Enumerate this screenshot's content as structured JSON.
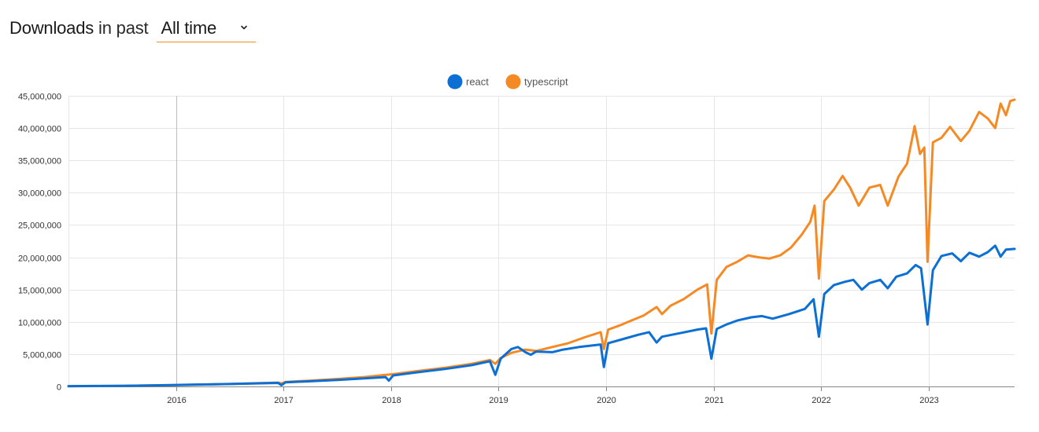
{
  "header": {
    "title": "Downloads",
    "subtitle": "in past",
    "range_value": "All time",
    "range_options": [
      "All time"
    ]
  },
  "chart_data": {
    "type": "line",
    "title": "",
    "xlabel": "",
    "ylabel": "",
    "x_range": [
      2015.0,
      2023.8
    ],
    "ylim": [
      0,
      45000000
    ],
    "y_ticks": [
      0,
      5000000,
      10000000,
      15000000,
      20000000,
      25000000,
      30000000,
      35000000,
      40000000,
      45000000
    ],
    "y_tick_labels": [
      "0",
      "5,000,000",
      "10,000,000",
      "15,000,000",
      "20,000,000",
      "25,000,000",
      "30,000,000",
      "35,000,000",
      "40,000,000",
      "45,000,000"
    ],
    "x_ticks": [
      2016,
      2017,
      2018,
      2019,
      2020,
      2021,
      2022,
      2023
    ],
    "x_tick_labels": [
      "2016",
      "2017",
      "2018",
      "2019",
      "2020",
      "2021",
      "2022",
      "2023"
    ],
    "grid": true,
    "legend_position": "top-center",
    "series": [
      {
        "name": "react",
        "color": "#0b6fd4",
        "points": [
          [
            2015.0,
            50000
          ],
          [
            2015.25,
            70000
          ],
          [
            2015.5,
            100000
          ],
          [
            2015.75,
            150000
          ],
          [
            2016.0,
            230000
          ],
          [
            2016.25,
            300000
          ],
          [
            2016.5,
            380000
          ],
          [
            2016.75,
            480000
          ],
          [
            2016.95,
            550000
          ],
          [
            2016.98,
            200000
          ],
          [
            2017.02,
            650000
          ],
          [
            2017.25,
            800000
          ],
          [
            2017.5,
            1000000
          ],
          [
            2017.75,
            1250000
          ],
          [
            2017.95,
            1450000
          ],
          [
            2017.98,
            900000
          ],
          [
            2018.02,
            1700000
          ],
          [
            2018.25,
            2200000
          ],
          [
            2018.5,
            2700000
          ],
          [
            2018.75,
            3300000
          ],
          [
            2018.92,
            3900000
          ],
          [
            2018.97,
            1800000
          ],
          [
            2019.02,
            4300000
          ],
          [
            2019.12,
            5800000
          ],
          [
            2019.18,
            6100000
          ],
          [
            2019.25,
            5300000
          ],
          [
            2019.3,
            4900000
          ],
          [
            2019.35,
            5400000
          ],
          [
            2019.5,
            5300000
          ],
          [
            2019.6,
            5700000
          ],
          [
            2019.75,
            6100000
          ],
          [
            2019.95,
            6500000
          ],
          [
            2019.98,
            3000000
          ],
          [
            2020.02,
            6700000
          ],
          [
            2020.15,
            7300000
          ],
          [
            2020.3,
            8000000
          ],
          [
            2020.4,
            8400000
          ],
          [
            2020.47,
            6800000
          ],
          [
            2020.52,
            7700000
          ],
          [
            2020.7,
            8300000
          ],
          [
            2020.85,
            8800000
          ],
          [
            2020.93,
            9000000
          ],
          [
            2020.98,
            4300000
          ],
          [
            2021.03,
            8900000
          ],
          [
            2021.12,
            9600000
          ],
          [
            2021.22,
            10200000
          ],
          [
            2021.35,
            10700000
          ],
          [
            2021.45,
            10900000
          ],
          [
            2021.55,
            10500000
          ],
          [
            2021.7,
            11200000
          ],
          [
            2021.85,
            12000000
          ],
          [
            2021.93,
            13500000
          ],
          [
            2021.98,
            7700000
          ],
          [
            2022.03,
            14300000
          ],
          [
            2022.12,
            15700000
          ],
          [
            2022.22,
            16200000
          ],
          [
            2022.3,
            16500000
          ],
          [
            2022.38,
            15000000
          ],
          [
            2022.45,
            16000000
          ],
          [
            2022.55,
            16500000
          ],
          [
            2022.62,
            15200000
          ],
          [
            2022.7,
            17000000
          ],
          [
            2022.8,
            17500000
          ],
          [
            2022.88,
            18800000
          ],
          [
            2022.93,
            18300000
          ],
          [
            2022.99,
            9600000
          ],
          [
            2023.04,
            18000000
          ],
          [
            2023.12,
            20200000
          ],
          [
            2023.22,
            20600000
          ],
          [
            2023.3,
            19400000
          ],
          [
            2023.38,
            20700000
          ],
          [
            2023.47,
            20100000
          ],
          [
            2023.55,
            20800000
          ],
          [
            2023.62,
            21800000
          ],
          [
            2023.67,
            20100000
          ],
          [
            2023.72,
            21200000
          ],
          [
            2023.8,
            21300000
          ]
        ]
      },
      {
        "name": "typescript",
        "color": "#f58a24",
        "points": [
          [
            2015.0,
            40000
          ],
          [
            2015.25,
            60000
          ],
          [
            2015.5,
            90000
          ],
          [
            2015.75,
            140000
          ],
          [
            2016.0,
            200000
          ],
          [
            2016.25,
            290000
          ],
          [
            2016.5,
            380000
          ],
          [
            2016.75,
            500000
          ],
          [
            2016.95,
            600000
          ],
          [
            2016.98,
            450000
          ],
          [
            2017.02,
            700000
          ],
          [
            2017.25,
            900000
          ],
          [
            2017.5,
            1150000
          ],
          [
            2017.75,
            1450000
          ],
          [
            2017.95,
            1800000
          ],
          [
            2018.02,
            1900000
          ],
          [
            2018.25,
            2400000
          ],
          [
            2018.5,
            2900000
          ],
          [
            2018.75,
            3500000
          ],
          [
            2018.92,
            4100000
          ],
          [
            2018.97,
            3500000
          ],
          [
            2019.02,
            4400000
          ],
          [
            2019.12,
            5200000
          ],
          [
            2019.25,
            5700000
          ],
          [
            2019.35,
            5500000
          ],
          [
            2019.5,
            6100000
          ],
          [
            2019.65,
            6700000
          ],
          [
            2019.8,
            7600000
          ],
          [
            2019.95,
            8400000
          ],
          [
            2019.98,
            5800000
          ],
          [
            2020.02,
            8800000
          ],
          [
            2020.12,
            9400000
          ],
          [
            2020.22,
            10100000
          ],
          [
            2020.35,
            11000000
          ],
          [
            2020.47,
            12300000
          ],
          [
            2020.52,
            11200000
          ],
          [
            2020.6,
            12500000
          ],
          [
            2020.72,
            13500000
          ],
          [
            2020.85,
            15000000
          ],
          [
            2020.94,
            15800000
          ],
          [
            2020.98,
            8200000
          ],
          [
            2021.03,
            16500000
          ],
          [
            2021.12,
            18500000
          ],
          [
            2021.22,
            19300000
          ],
          [
            2021.32,
            20300000
          ],
          [
            2021.42,
            20000000
          ],
          [
            2021.52,
            19800000
          ],
          [
            2021.62,
            20300000
          ],
          [
            2021.72,
            21500000
          ],
          [
            2021.82,
            23500000
          ],
          [
            2021.9,
            25500000
          ],
          [
            2021.94,
            28000000
          ],
          [
            2021.98,
            16700000
          ],
          [
            2022.03,
            28700000
          ],
          [
            2022.12,
            30500000
          ],
          [
            2022.2,
            32600000
          ],
          [
            2022.27,
            30800000
          ],
          [
            2022.35,
            28000000
          ],
          [
            2022.45,
            30800000
          ],
          [
            2022.55,
            31200000
          ],
          [
            2022.62,
            28000000
          ],
          [
            2022.72,
            32500000
          ],
          [
            2022.8,
            34500000
          ],
          [
            2022.87,
            40300000
          ],
          [
            2022.92,
            36000000
          ],
          [
            2022.96,
            37000000
          ],
          [
            2022.99,
            19300000
          ],
          [
            2023.04,
            37800000
          ],
          [
            2023.12,
            38500000
          ],
          [
            2023.2,
            40200000
          ],
          [
            2023.3,
            38000000
          ],
          [
            2023.38,
            39600000
          ],
          [
            2023.47,
            42500000
          ],
          [
            2023.55,
            41500000
          ],
          [
            2023.62,
            40000000
          ],
          [
            2023.67,
            43800000
          ],
          [
            2023.72,
            42000000
          ],
          [
            2023.76,
            44200000
          ],
          [
            2023.8,
            44400000
          ]
        ]
      }
    ]
  }
}
